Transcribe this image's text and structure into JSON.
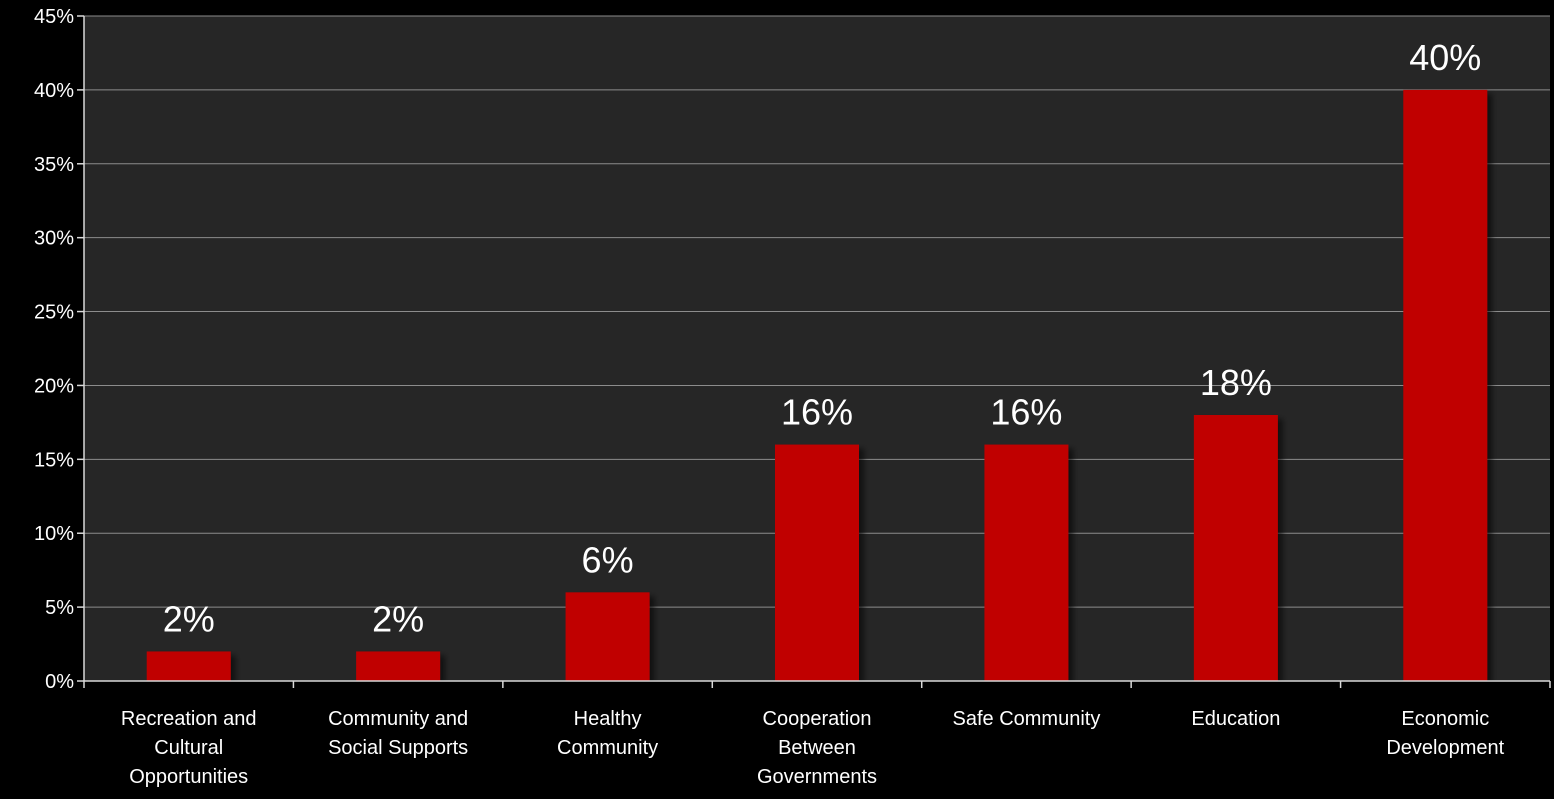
{
  "chart_data": {
    "type": "bar",
    "categories": [
      [
        "Recreation and",
        "Cultural",
        "Opportunities"
      ],
      [
        "Community and",
        "Social Supports"
      ],
      [
        "Healthy",
        "Community"
      ],
      [
        "Cooperation",
        "Between",
        "Governments"
      ],
      [
        "Safe Community"
      ],
      [
        "Education"
      ],
      [
        "Economic",
        "Development"
      ]
    ],
    "values": [
      2,
      2,
      6,
      16,
      16,
      18,
      40
    ],
    "data_labels": [
      "2%",
      "2%",
      "6%",
      "16%",
      "16%",
      "18%",
      "40%"
    ],
    "yticks": [
      0,
      5,
      10,
      15,
      20,
      25,
      30,
      35,
      40,
      45
    ],
    "ytick_labels": [
      "0%",
      "5%",
      "10%",
      "15%",
      "20%",
      "25%",
      "30%",
      "35%",
      "40%",
      "45%"
    ],
    "ylim": [
      0,
      45
    ],
    "grid": true,
    "legend": "none",
    "colors": {
      "page_background": "#000000",
      "plot_background": "#262626",
      "bar": "#c00000",
      "gridline": "#8c8c8c",
      "axis": "#d9d9d9",
      "text": "#ffffff"
    }
  }
}
